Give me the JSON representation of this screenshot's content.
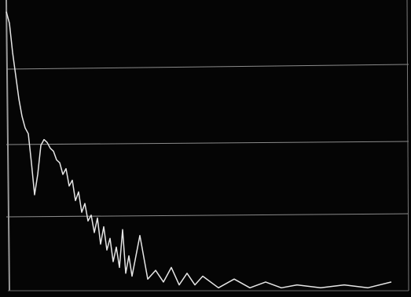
{
  "chart_data": {
    "type": "line",
    "x": [
      0,
      4,
      8,
      12,
      16,
      20,
      24,
      28,
      32,
      36,
      40,
      44,
      48,
      52,
      56,
      60,
      64,
      68,
      72,
      76,
      80,
      84,
      88,
      92,
      96,
      100,
      104,
      108,
      112,
      116,
      120,
      124,
      128,
      132,
      136,
      140,
      144,
      148,
      152,
      156,
      160,
      170,
      180,
      190,
      200,
      210,
      220,
      230,
      240,
      250,
      270,
      290,
      310,
      330,
      350,
      370,
      400,
      430,
      460,
      490
    ],
    "values": [
      96,
      92,
      82,
      74,
      66,
      60,
      56,
      54,
      44,
      33,
      40,
      50,
      52,
      51,
      49,
      48,
      45,
      44,
      40,
      42,
      36,
      38,
      31,
      34,
      27,
      30,
      24,
      26,
      20,
      25,
      16,
      22,
      14,
      18,
      10,
      15,
      8,
      21,
      6,
      12,
      5,
      19,
      4,
      7,
      3,
      8,
      2,
      6,
      2,
      5,
      1,
      4,
      1,
      3,
      1,
      2,
      1,
      2,
      1,
      3
    ],
    "color": "#e6e6e6",
    "xlim": [
      0,
      512
    ],
    "ylim": [
      0,
      100
    ]
  }
}
